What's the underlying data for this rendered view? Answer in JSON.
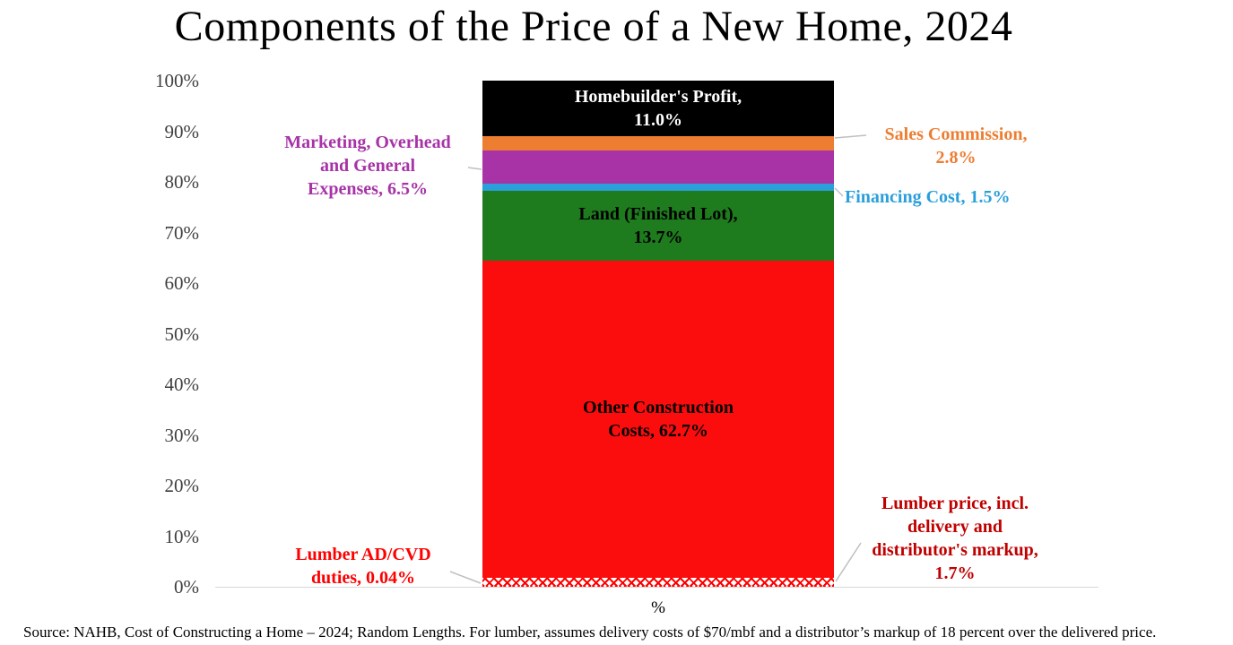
{
  "chart_data": {
    "type": "bar",
    "stacked": true,
    "orientation": "vertical",
    "title": "Components of the Price of a New Home, 2024",
    "xlabel": "%",
    "ylim": [
      0,
      100
    ],
    "grid": false,
    "yticks": [
      "100%",
      "90%",
      "80%",
      "70%",
      "60%",
      "50%",
      "40%",
      "30%",
      "20%",
      "10%",
      "0%"
    ],
    "segments": [
      {
        "id": "lumber-advd",
        "name": "Lumber AD/CVD duties",
        "value": 0.04,
        "color": "#ff0000",
        "pattern": "hatch"
      },
      {
        "id": "lumber-price",
        "name": "Lumber price, incl. delivery and distributor's markup",
        "value": 1.7,
        "color": "#ff0000",
        "pattern": "hatch"
      },
      {
        "id": "other-construction",
        "name": "Other Construction Costs",
        "value": 62.7,
        "color": "#fc0d0d",
        "inner_label": "Other Construction\nCosts, 62.7%",
        "inner_label_color": "#000000"
      },
      {
        "id": "land",
        "name": "Land (Finished Lot)",
        "value": 13.7,
        "color": "#1e7b1e",
        "inner_label": "Land (Finished Lot),\n13.7%",
        "inner_label_color": "#000000"
      },
      {
        "id": "financing",
        "name": "Financing Cost",
        "value": 1.5,
        "color": "#2b9fd9"
      },
      {
        "id": "marketing",
        "name": "Marketing, Overhead and General Expenses",
        "value": 6.5,
        "color": "#a733a7"
      },
      {
        "id": "sales",
        "name": "Sales Commission",
        "value": 2.8,
        "color": "#ed7d31"
      },
      {
        "id": "profit",
        "name": "Homebuilder's Profit",
        "value": 11.0,
        "color": "#000000",
        "inner_label": "Homebuilder's Profit,\n11.0%",
        "inner_label_color": "#ffffff"
      }
    ],
    "annotations": {
      "marketing": {
        "text": "Marketing, Overhead\nand General\nExpenses, 6.5%",
        "color": "#a733a7"
      },
      "sales": {
        "text": "Sales Commission,\n2.8%",
        "color": "#ed7d31"
      },
      "financing": {
        "text": "Financing Cost, 1.5%",
        "color": "#2b9fd9"
      },
      "lumber_advd": {
        "text": "Lumber AD/CVD\nduties, 0.04%",
        "color": "#ff0000"
      },
      "lumber_price": {
        "text": "Lumber price, incl.\ndelivery and\ndistributor's markup,\n1.7%",
        "color": "#c00000"
      }
    }
  },
  "source": "Source: NAHB, Cost of Constructing a Home – 2024; Random Lengths.  For lumber, assumes delivery costs of $70/mbf and a distributor’s markup of 18 percent over the delivered price."
}
